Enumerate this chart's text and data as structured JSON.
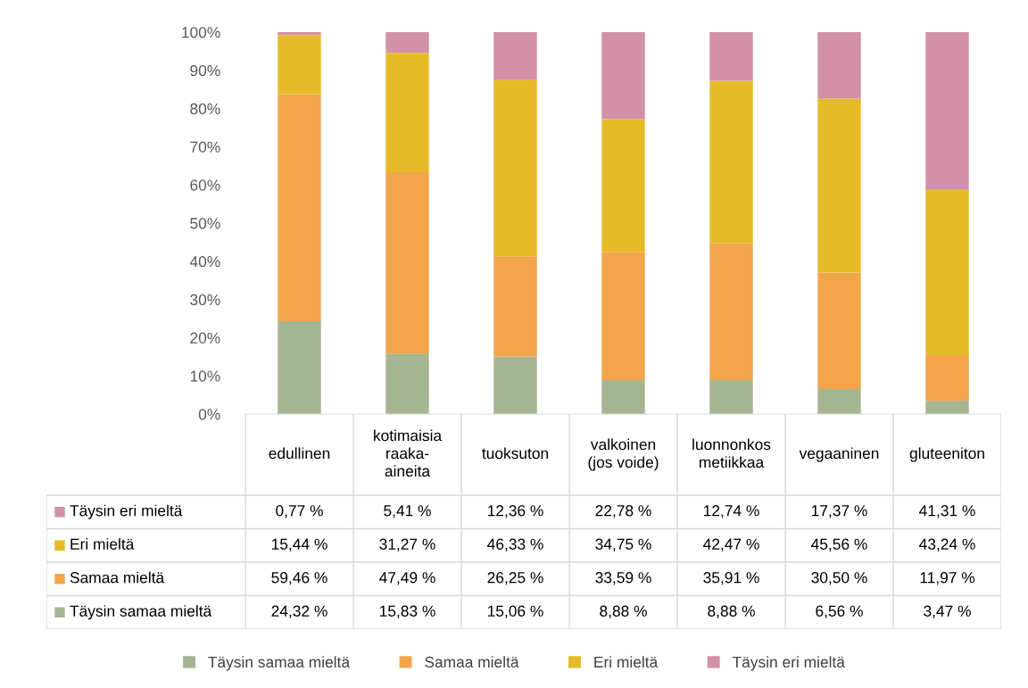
{
  "chart_data": {
    "type": "bar",
    "stacked": true,
    "categories": [
      "edullinen",
      "kotimaisia raaka-aineita",
      "tuoksuton",
      "valkoinen (jos voide)",
      "luonnonkosmetiikkaa",
      "vegaaninen",
      "gluteeniton"
    ],
    "series": [
      {
        "name": "Täysin samaa mieltä",
        "color": "#a5b592",
        "values": [
          24.32,
          15.83,
          15.06,
          8.88,
          8.88,
          6.56,
          3.47
        ],
        "value_labels": [
          "24,32 %",
          "15,83 %",
          "15,06 %",
          "8,88 %",
          "8,88 %",
          "6,56 %",
          "3,47 %"
        ]
      },
      {
        "name": "Samaa mieltä",
        "color": "#f2a54a",
        "values": [
          59.46,
          47.49,
          26.25,
          33.59,
          35.91,
          30.5,
          11.97
        ],
        "value_labels": [
          "59,46 %",
          "47,49 %",
          "26,25 %",
          "33,59 %",
          "35,91 %",
          "30,50 %",
          "11,97 %"
        ]
      },
      {
        "name": "Eri mieltä",
        "color": "#e6bb2a",
        "values": [
          15.44,
          31.27,
          46.33,
          34.75,
          42.47,
          45.56,
          43.24
        ],
        "value_labels": [
          "15,44 %",
          "31,27 %",
          "46,33 %",
          "34,75 %",
          "42,47 %",
          "45,56 %",
          "43,24 %"
        ]
      },
      {
        "name": "Täysin eri mieltä",
        "color": "#d291a6",
        "values": [
          0.77,
          5.41,
          12.36,
          22.78,
          12.74,
          17.37,
          41.31
        ],
        "value_labels": [
          "0,77 %",
          "5,41 %",
          "12,36 %",
          "22,78 %",
          "12,74 %",
          "17,37 %",
          "41,31 %"
        ]
      }
    ],
    "ylim": [
      0,
      100
    ],
    "yticks": [
      {
        "value": 0,
        "label": "0%"
      },
      {
        "value": 10,
        "label": "10%"
      },
      {
        "value": 20,
        "label": "20%"
      },
      {
        "value": 30,
        "label": "30%"
      },
      {
        "value": 40,
        "label": "40%"
      },
      {
        "value": 50,
        "label": "50%"
      },
      {
        "value": 60,
        "label": "60%"
      },
      {
        "value": 70,
        "label": "70%"
      },
      {
        "value": 80,
        "label": "80%"
      },
      {
        "value": 90,
        "label": "90%"
      },
      {
        "value": 100,
        "label": "100%"
      }
    ],
    "grid": false,
    "legend": "bottom"
  }
}
